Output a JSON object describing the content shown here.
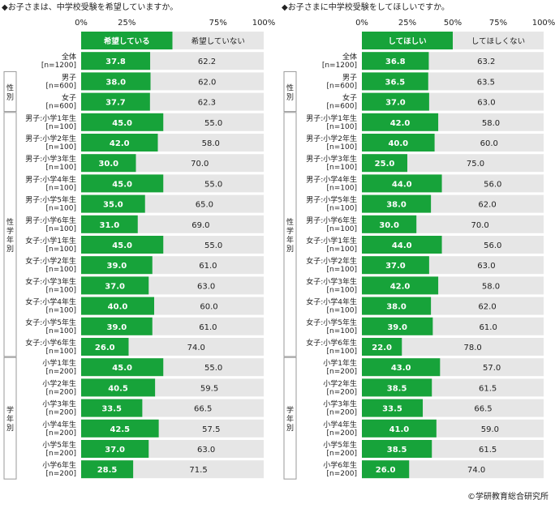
{
  "credit": "©学研教育総合研究所",
  "colors": {
    "bar": "#17a33a",
    "track": "#e6e6e6",
    "group_line": "#999999"
  },
  "groups": [
    {
      "label": "",
      "start": 0,
      "end": 0
    },
    {
      "label": "性別",
      "start": 1,
      "end": 2
    },
    {
      "label": "性学年別",
      "start": 3,
      "end": 14
    },
    {
      "label": "学年別",
      "start": 15,
      "end": 20
    }
  ],
  "rows": [
    [
      "全体",
      "[n=1200]"
    ],
    [
      "男子",
      "[n=600]"
    ],
    [
      "女子",
      "[n=600]"
    ],
    [
      "男子:小学1年生",
      "[n=100]"
    ],
    [
      "男子:小学2年生",
      "[n=100]"
    ],
    [
      "男子:小学3年生",
      "[n=100]"
    ],
    [
      "男子:小学4年生",
      "[n=100]"
    ],
    [
      "男子:小学5年生",
      "[n=100]"
    ],
    [
      "男子:小学6年生",
      "[n=100]"
    ],
    [
      "女子:小学1年生",
      "[n=100]"
    ],
    [
      "女子:小学2年生",
      "[n=100]"
    ],
    [
      "女子:小学3年生",
      "[n=100]"
    ],
    [
      "女子:小学4年生",
      "[n=100]"
    ],
    [
      "女子:小学5年生",
      "[n=100]"
    ],
    [
      "女子:小学6年生",
      "[n=100]"
    ],
    [
      "小学1年生",
      "[n=200]"
    ],
    [
      "小学2年生",
      "[n=200]"
    ],
    [
      "小学3年生",
      "[n=200]"
    ],
    [
      "小学4年生",
      "[n=200]"
    ],
    [
      "小学5年生",
      "[n=200]"
    ],
    [
      "小学6年生",
      "[n=200]"
    ]
  ],
  "chart_data": [
    {
      "type": "bar",
      "title": "◆お子さまは、中学校受験を希望していますか。",
      "ticks": [
        "0%",
        "25%",
        "75%",
        "100%"
      ],
      "tick_values": [
        0,
        25,
        75,
        100
      ],
      "xlim": [
        0,
        100
      ],
      "legend": [
        "希望している",
        "希望していない"
      ],
      "series": [
        {
          "name": "希望している",
          "values": [
            37.8,
            38.0,
            37.7,
            45.0,
            42.0,
            30.0,
            45.0,
            35.0,
            31.0,
            45.0,
            39.0,
            37.0,
            40.0,
            39.0,
            26.0,
            45.0,
            40.5,
            33.5,
            42.5,
            37.0,
            28.5
          ]
        },
        {
          "name": "希望していない",
          "values": [
            62.2,
            62.0,
            62.3,
            55.0,
            58.0,
            70.0,
            55.0,
            65.0,
            69.0,
            55.0,
            61.0,
            63.0,
            60.0,
            61.0,
            74.0,
            55.0,
            59.5,
            66.5,
            57.5,
            63.0,
            71.5
          ]
        }
      ]
    },
    {
      "type": "bar",
      "title": "◆お子さまに中学校受験をしてほしいですか。",
      "ticks": [
        "0%",
        "25%",
        "50%",
        "75%",
        "100%"
      ],
      "tick_values": [
        0,
        25,
        50,
        75,
        100
      ],
      "xlim": [
        0,
        100
      ],
      "legend": [
        "してほしい",
        "してほしくない"
      ],
      "series": [
        {
          "name": "してほしい",
          "values": [
            36.8,
            36.5,
            37.0,
            42.0,
            40.0,
            25.0,
            44.0,
            38.0,
            30.0,
            44.0,
            37.0,
            42.0,
            38.0,
            39.0,
            22.0,
            43.0,
            38.5,
            33.5,
            41.0,
            38.5,
            26.0
          ]
        },
        {
          "name": "してほしくない",
          "values": [
            63.2,
            63.5,
            63.0,
            58.0,
            60.0,
            75.0,
            56.0,
            62.0,
            70.0,
            56.0,
            63.0,
            58.0,
            62.0,
            61.0,
            78.0,
            57.0,
            61.5,
            66.5,
            59.0,
            61.5,
            74.0
          ]
        }
      ]
    }
  ]
}
